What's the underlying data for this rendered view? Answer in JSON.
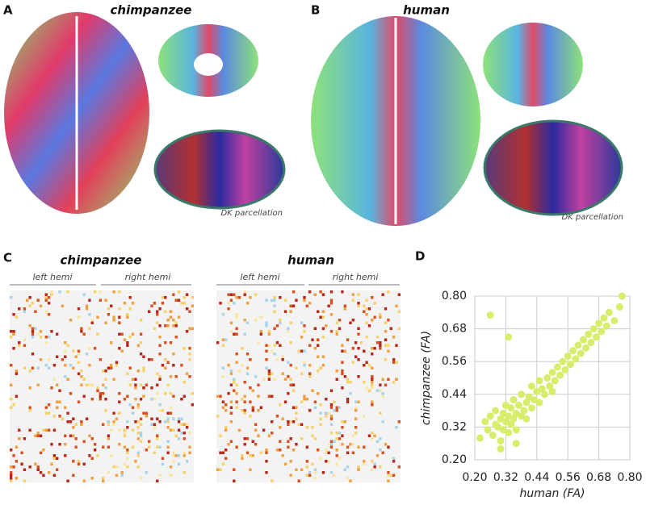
{
  "panels": {
    "A": {
      "letter": "A",
      "title": "chimpanzee",
      "note": "DK parcellation"
    },
    "B": {
      "letter": "B",
      "title": "human",
      "note": "DK parcellation"
    },
    "C": {
      "letter": "C",
      "left_title": "chimpanzee",
      "right_title": "human",
      "hemis": [
        "left hemi",
        "right hemi",
        "left hemi",
        "right hemi"
      ]
    },
    "D": {
      "letter": "D"
    }
  },
  "chart_data": {
    "type": "scatter",
    "xlabel": "human (FA)",
    "ylabel": "chimpanzee (FA)",
    "color": "#d6ee6c",
    "grid": true,
    "xlim": [
      0.2,
      0.8
    ],
    "ylim": [
      0.2,
      0.8
    ],
    "xticks": [
      {
        "value": 0.2,
        "label": "0.20"
      },
      0.32,
      0.44,
      0.56,
      0.68,
      {
        "value": 0.8,
        "label": "0.80"
      }
    ],
    "yticks": [
      {
        "value": 0.2,
        "label": "0.20"
      },
      0.32,
      0.44,
      0.56,
      0.68,
      {
        "value": 0.8,
        "label": "0.80"
      }
    ],
    "x": [
      0.22,
      0.24,
      0.25,
      0.26,
      0.27,
      0.28,
      0.28,
      0.29,
      0.3,
      0.3,
      0.31,
      0.31,
      0.32,
      0.32,
      0.33,
      0.33,
      0.34,
      0.34,
      0.35,
      0.35,
      0.36,
      0.36,
      0.37,
      0.38,
      0.38,
      0.39,
      0.4,
      0.4,
      0.41,
      0.42,
      0.42,
      0.43,
      0.44,
      0.45,
      0.45,
      0.46,
      0.47,
      0.48,
      0.49,
      0.5,
      0.5,
      0.51,
      0.52,
      0.53,
      0.54,
      0.55,
      0.56,
      0.57,
      0.58,
      0.59,
      0.6,
      0.61,
      0.62,
      0.63,
      0.64,
      0.65,
      0.66,
      0.67,
      0.68,
      0.69,
      0.7,
      0.71,
      0.72,
      0.74,
      0.76,
      0.77,
      0.26,
      0.33,
      0.3,
      0.36
    ],
    "values": [
      0.28,
      0.34,
      0.31,
      0.36,
      0.29,
      0.33,
      0.38,
      0.32,
      0.35,
      0.27,
      0.37,
      0.31,
      0.34,
      0.4,
      0.3,
      0.36,
      0.33,
      0.39,
      0.35,
      0.42,
      0.37,
      0.31,
      0.4,
      0.36,
      0.44,
      0.38,
      0.41,
      0.35,
      0.43,
      0.39,
      0.47,
      0.42,
      0.45,
      0.41,
      0.49,
      0.46,
      0.44,
      0.5,
      0.47,
      0.52,
      0.45,
      0.49,
      0.54,
      0.51,
      0.56,
      0.53,
      0.58,
      0.55,
      0.6,
      0.57,
      0.62,
      0.59,
      0.64,
      0.61,
      0.66,
      0.63,
      0.68,
      0.65,
      0.7,
      0.67,
      0.72,
      0.69,
      0.74,
      0.71,
      0.76,
      0.8,
      0.73,
      0.65,
      0.24,
      0.26
    ]
  }
}
